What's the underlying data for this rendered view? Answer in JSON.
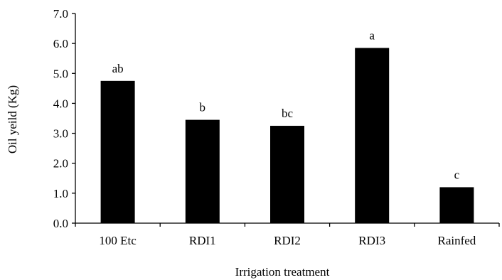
{
  "chart_data": {
    "type": "bar",
    "title": "",
    "xlabel": "Irrigation treatment",
    "ylabel": "Oil yeild (Kg)",
    "categories": [
      "100 Etc",
      "RDI1",
      "RDI2",
      "RDI3",
      "Rainfed"
    ],
    "values": [
      4.75,
      3.45,
      3.25,
      5.85,
      1.2
    ],
    "bar_labels": [
      "ab",
      "b",
      "bc",
      "a",
      "c"
    ],
    "ylim": [
      0,
      7
    ],
    "yticks": [
      "0.0",
      "1.0",
      "2.0",
      "3.0",
      "4.0",
      "5.0",
      "6.0",
      "7.0"
    ],
    "grid": false,
    "legend": "none",
    "bar_color": "#000000"
  }
}
